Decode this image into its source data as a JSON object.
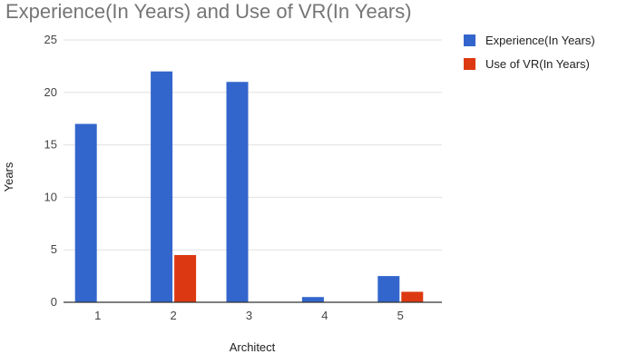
{
  "chart_data": {
    "type": "bar",
    "title": "Experience(In Years) and Use of VR(In Years)",
    "xlabel": "Architect",
    "ylabel": "Years",
    "categories": [
      "1",
      "2",
      "3",
      "4",
      "5"
    ],
    "series": [
      {
        "name": "Experience(In Years)",
        "values": [
          17,
          22,
          21,
          0.5,
          2.5
        ],
        "color": "#3366cc"
      },
      {
        "name": "Use of VR(In Years)",
        "values": [
          0,
          4.5,
          0,
          0,
          1
        ],
        "color": "#dc3912"
      }
    ],
    "ylim": [
      0,
      25
    ],
    "yticks": [
      0,
      5,
      10,
      15,
      20,
      25
    ],
    "grid": true,
    "legend_position": "top-right"
  }
}
